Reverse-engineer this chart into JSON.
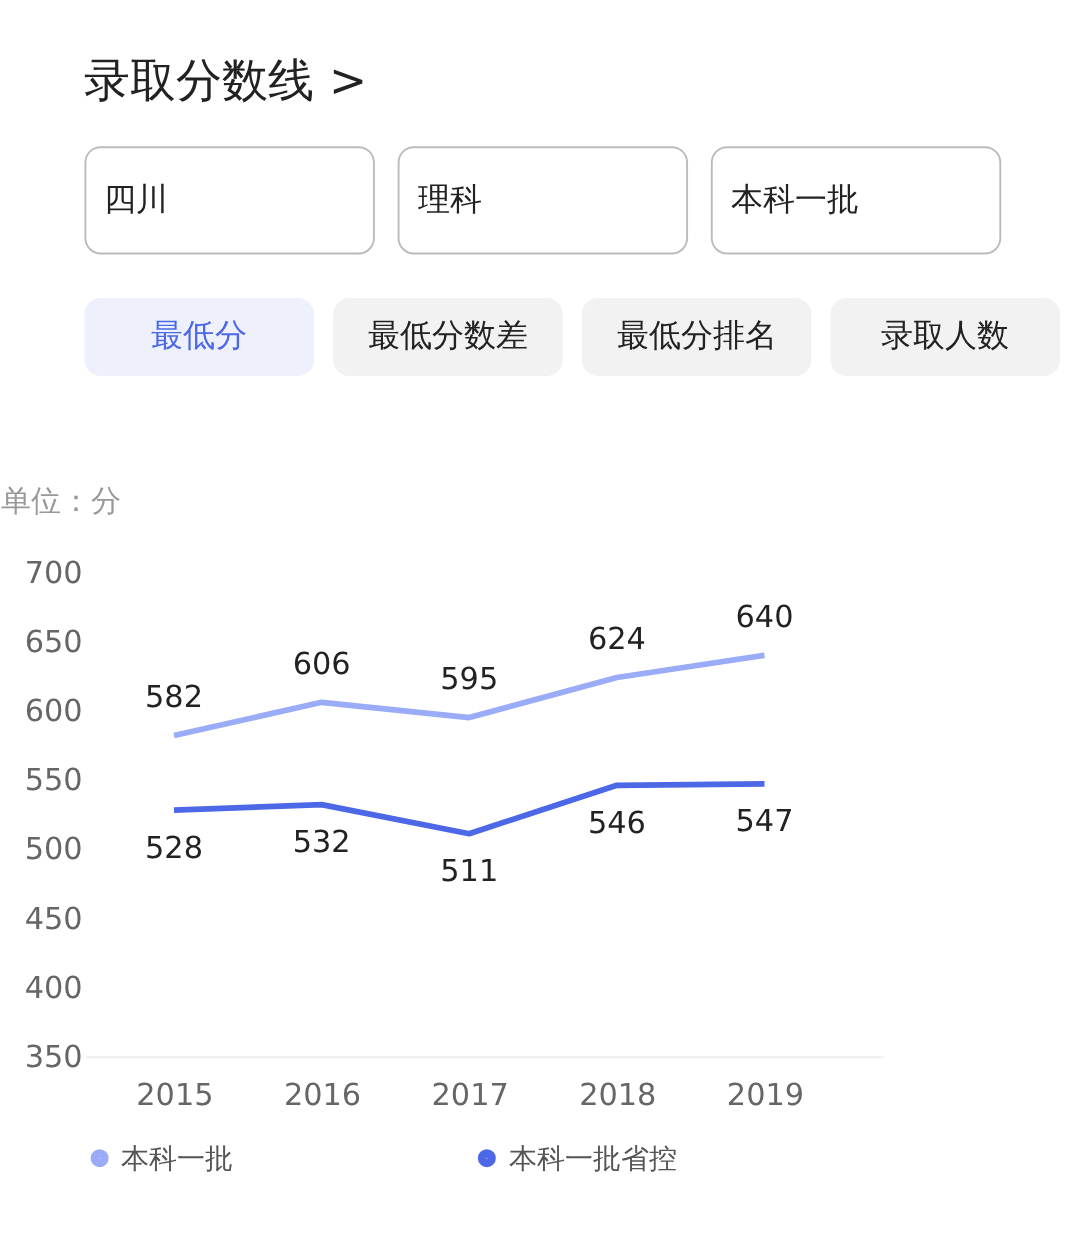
{
  "chart_data": {
    "type": "line",
    "title": "录取分数线 >",
    "ylabel": "单位：分",
    "annotations": [
      "四川",
      "理科",
      "本科一批",
      "最低分",
      "最低分数差",
      "最低分排名",
      "录取人数"
    ],
    "categories": [
      "2015",
      "2016",
      "2017",
      "2018",
      "2019"
    ],
    "series": [
      {
        "name": "本科一批",
        "color": "#9aabf7",
        "values": [
          582,
          606,
          595,
          624,
          640
        ]
      },
      {
        "name": "本科一批省控",
        "color": "#4d68e6",
        "values": [
          528,
          532,
          511,
          546,
          547
        ]
      }
    ],
    "ylim": [
      350,
      700
    ],
    "yticks": [
      350,
      400,
      450,
      500,
      550,
      600,
      650,
      700
    ],
    "data_labels": true,
    "grid": false,
    "legend": "bottom",
    "marker": "none",
    "line_style": "solid"
  }
}
